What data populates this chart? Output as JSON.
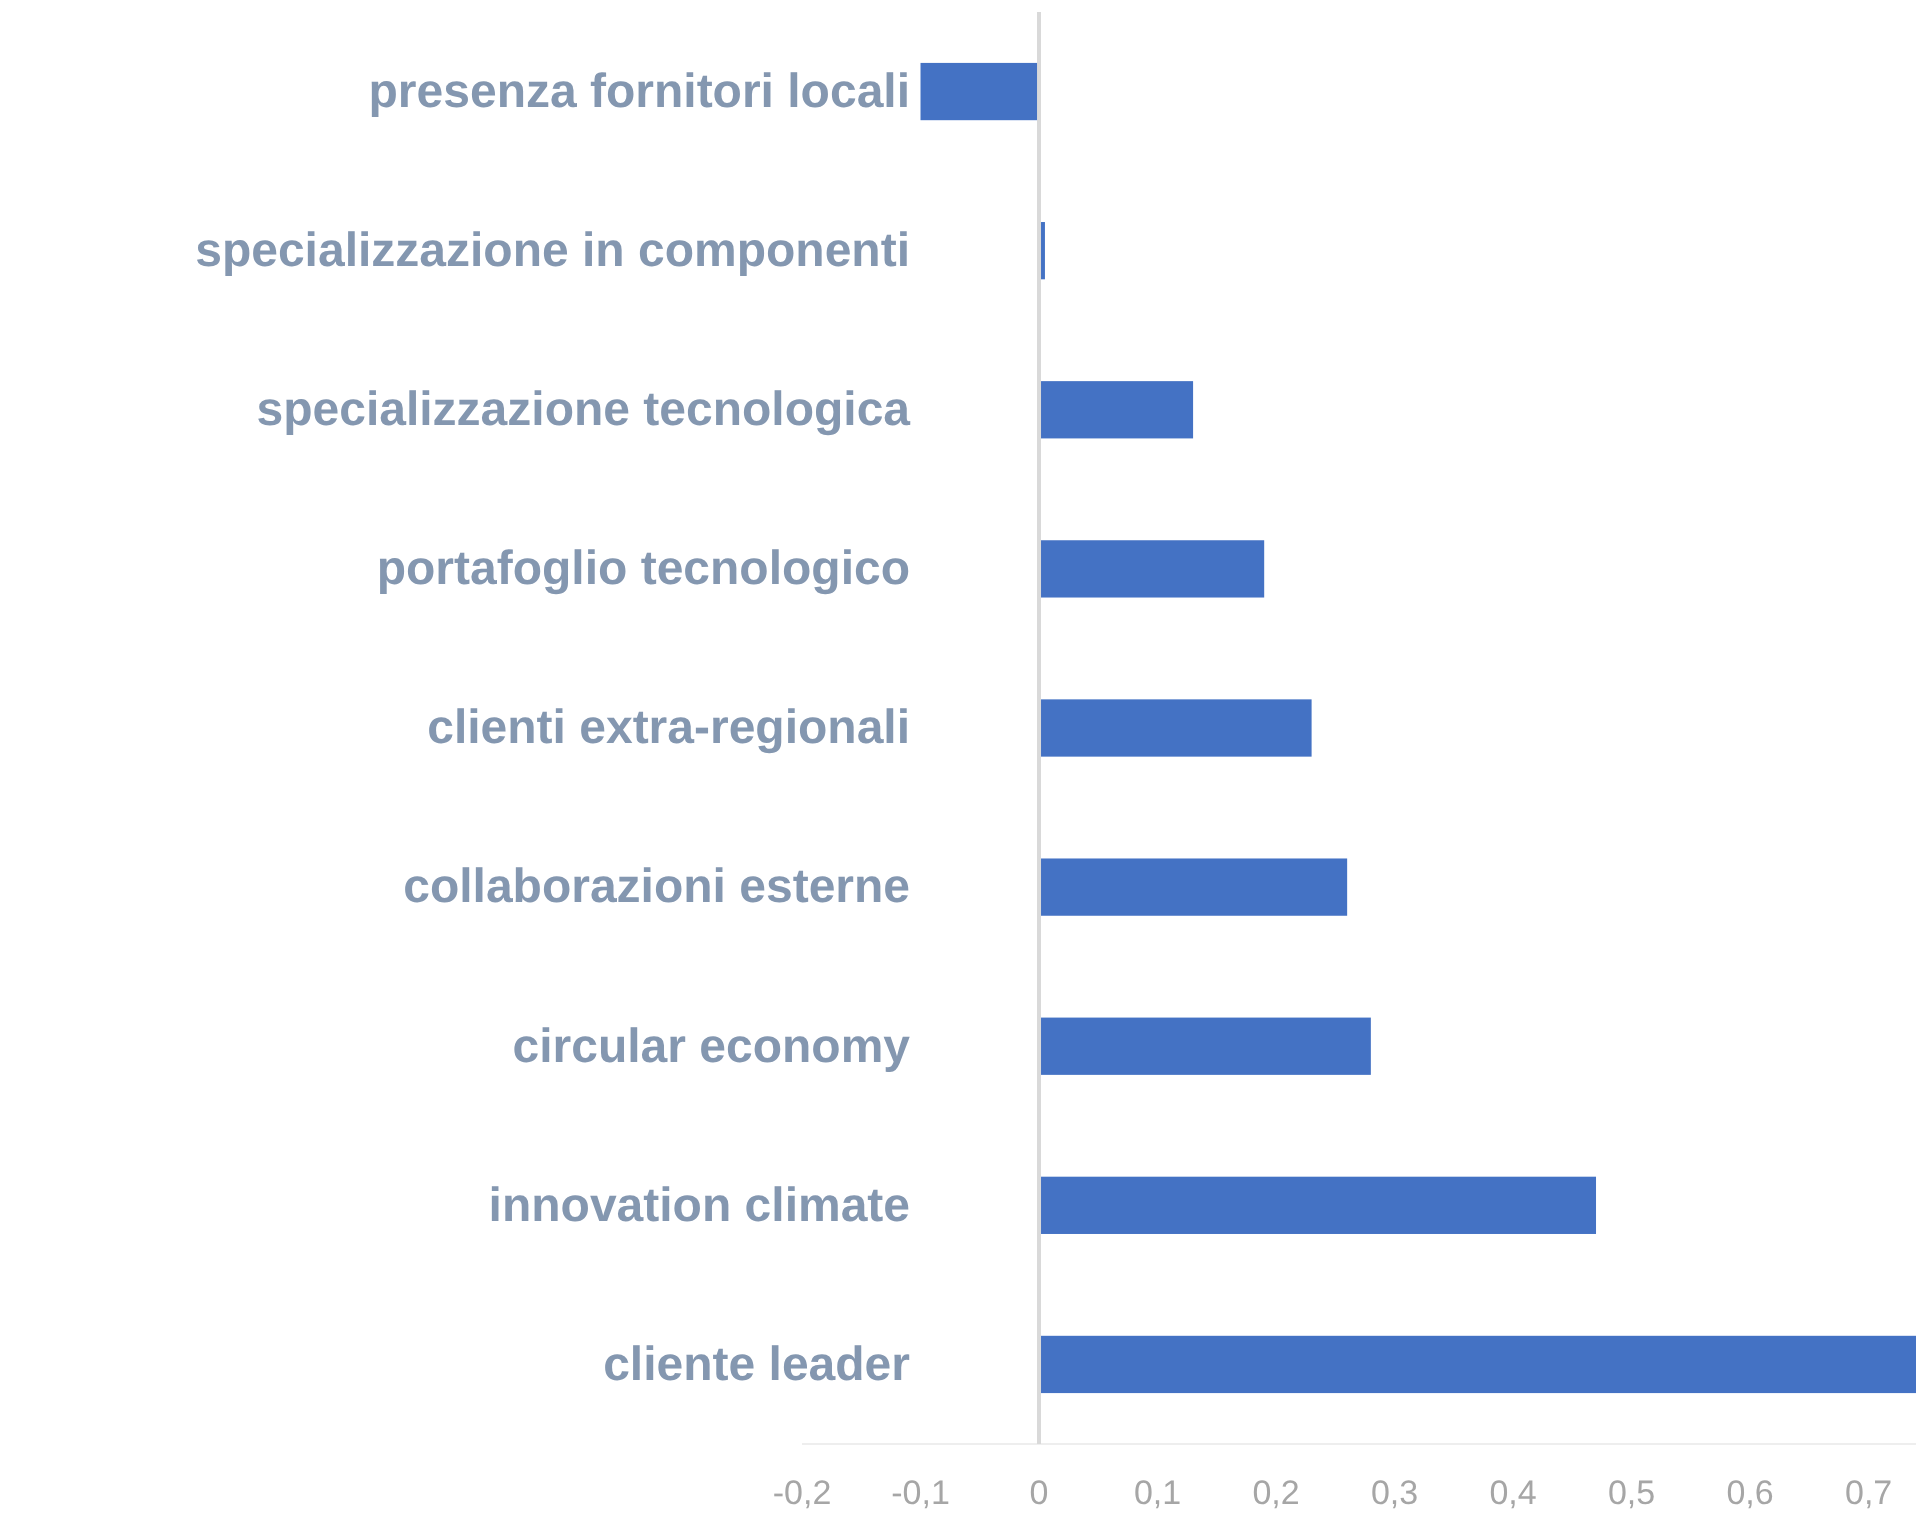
{
  "chart_data": {
    "type": "bar",
    "orientation": "horizontal",
    "categories": [
      "presenza fornitori locali",
      "specializzazione in componenti",
      "specializzazione tecnologica",
      "portafoglio tecnologico",
      "clienti extra-regionali",
      "collaborazioni esterne",
      "circular economy",
      "innovation climate",
      "cliente leader"
    ],
    "values": [
      -0.1,
      0.005,
      0.13,
      0.19,
      0.23,
      0.26,
      0.28,
      0.47,
      0.74
    ],
    "color": "#4472c4",
    "xlim": [
      -0.2,
      0.74
    ],
    "xticks": [
      {
        "value": -0.2,
        "label": "-0,2"
      },
      {
        "value": -0.1,
        "label": "-0,1"
      },
      0,
      {
        "value": 0.1,
        "label": "0,1"
      },
      {
        "value": 0.2,
        "label": "0,2"
      },
      {
        "value": 0.3,
        "label": "0,3"
      },
      {
        "value": 0.4,
        "label": "0,4"
      },
      {
        "value": 0.5,
        "label": "0,5"
      },
      {
        "value": 0.6,
        "label": "0,6"
      },
      {
        "value": 0.7,
        "label": "0,7"
      }
    ],
    "ref_lines": [
      {
        "axis": "x",
        "value": 0,
        "color": "#d9d9d9"
      }
    ]
  }
}
